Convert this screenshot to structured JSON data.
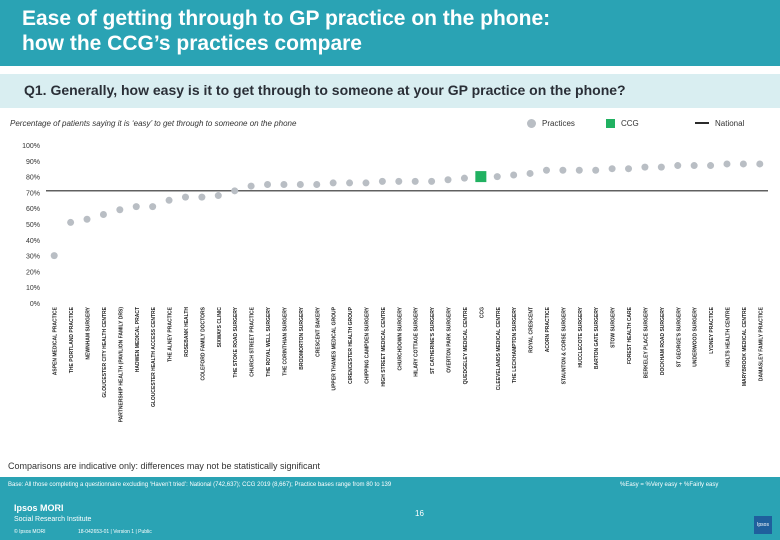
{
  "header": {
    "title_line1": "Ease of getting through to GP practice on the phone:",
    "title_line2": "how the CCG’s practices compare"
  },
  "question": "Q1. Generally, how easy is it to get through to someone at your GP practice on the phone?",
  "subtitle": "Percentage of patients saying it is ‘easy’ to get through to someone on the phone",
  "legend": {
    "practices": "Practices",
    "ccg": "CCG",
    "national": "National"
  },
  "colors": {
    "practice": "#b9bec4",
    "ccg": "#21b161",
    "header": "#2aa3b4",
    "axis": "#2b2b2b"
  },
  "chart_data": {
    "type": "scatter",
    "title": "Percentage of patients saying it is ‘easy’ to get through to someone on the phone",
    "ylim": [
      0,
      100
    ],
    "yticks": [
      "0%",
      "10%",
      "20%",
      "30%",
      "40%",
      "50%",
      "60%",
      "70%",
      "80%",
      "90%",
      "100%"
    ],
    "categories": [
      "ASPEN MEDICAL PRACTICE",
      "THE PORTLAND PRACTICE",
      "NEWNHAM SURGERY",
      "GLOUCESTER CITY HEALTH CENTRE",
      "PARTNERSHIP HEALTH (PAVILION FAMILY DRS)",
      "HADWEN MEDICAL PRACT",
      "GLOUCESTER HEALTH ACCESS CENTRE",
      "THE ALNEY PRACTICE",
      "ROSEBANK HEALTH",
      "COLEFORD FAMILY DOCTORS",
      "SIXWAYS CLINIC",
      "THE STOKE ROAD SURGERY",
      "CHURCH STREET PRACTICE",
      "THE ROYAL WELL SURGERY",
      "THE CORINTHIAN SURGERY",
      "BRODMORTON SURGERY",
      "CRESCENT BAKERY",
      "UPPER THAMES MEDICAL GROUP",
      "CIRENCESTER HEALTH GROUP",
      "CHIPPING CAMPDEN SURGERY",
      "HIGH STREET MEDICAL CENTRE",
      "CHURCHDOWN SURGERY",
      "HILARY COTTAGE SURGERY",
      "ST CATHERINE'S SURGERY",
      "OVERTON PARK SURGERY",
      "QUEDGELEY MEDICAL CENTRE",
      "CCG",
      "CLEEVELANDS MEDICAL CENTRE",
      "THE LECKHAMPTON SURGERY",
      "ROYAL CRESCENT",
      "ACORN PRACTICE",
      "STAUNTON & CORSE SURGERY",
      "HUCCLECOTE SURGERY",
      "BARTON GATE SURGERY",
      "STOW SURGERY",
      "FOREST HEALTH CARE",
      "BERKELEY PLACE SURGERY",
      "DOCKHAM ROAD SURGERY",
      "ST GEORGE'S SURGERY",
      "UNDERWOOD SURGERY",
      "LYDNEY PRACTICE",
      "HOLTS HEALTH CENTRE",
      "MARYBROOK MEDICAL CENTRE",
      "DAMASLEY FAMILY PRACTICE"
    ],
    "values": [
      30,
      51,
      53,
      56,
      59,
      61,
      61,
      65,
      67,
      67,
      68,
      71,
      74,
      75,
      75,
      75,
      75,
      76,
      76,
      76,
      77,
      77,
      77,
      77,
      78,
      79,
      80,
      80,
      81,
      82,
      84,
      84,
      84,
      84,
      85,
      85,
      86,
      86,
      87,
      87,
      87,
      88,
      88,
      88
    ],
    "national_value": 71,
    "highlight_category": "CCG"
  },
  "footnote": "Comparisons are indicative only: differences may not be statistically significant",
  "base_note": "Base: All those completing a questionnaire excluding ‘Haven’t tried’: National (742,637); CCG 2019 (8,667); Practice bases range from 80 to 139",
  "formula_note": "%Easy = %Very easy + %Fairly easy",
  "footer": {
    "brand": "Ipsos MORI",
    "brand_sub": "Social Research Institute",
    "copyright": "© Ipsos MORI",
    "job_ref": "18-042653-01 | Version 1 | Public",
    "page_number": "16",
    "logo": "Ipsos"
  }
}
